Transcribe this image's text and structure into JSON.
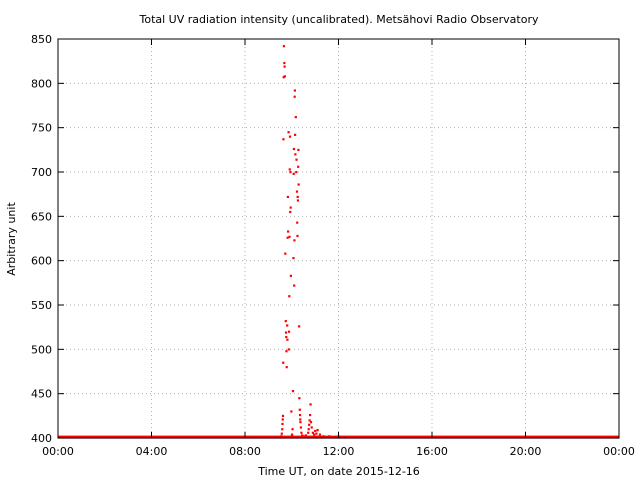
{
  "chart_data": {
    "type": "scatter",
    "title": "Total UV radiation intensity (uncalibrated). Metsähovi Radio Observatory",
    "xlabel": "Time UT, on date 2015-12-16",
    "ylabel": "Arbitrary unit",
    "x_unit": "hours UT",
    "xlim": [
      0,
      24
    ],
    "ylim": [
      400,
      850
    ],
    "x_ticks": [
      0,
      4,
      8,
      12,
      16,
      20,
      24
    ],
    "x_tick_labels": [
      "00:00",
      "04:00",
      "08:00",
      "12:00",
      "16:00",
      "20:00",
      "00:00"
    ],
    "y_ticks": [
      400,
      450,
      500,
      550,
      600,
      650,
      700,
      750,
      800,
      850
    ],
    "y_tick_labels": [
      "400",
      "450",
      "500",
      "550",
      "600",
      "650",
      "700",
      "750",
      "800",
      "850"
    ],
    "grid": true,
    "marker_color": "#ff0000",
    "series": [
      {
        "baseline": {
          "value": 401,
          "x_range": [
            0,
            24
          ]
        },
        "points": [
          [
            9.55,
            402
          ],
          [
            9.57,
            405
          ],
          [
            9.59,
            410
          ],
          [
            9.6,
            416
          ],
          [
            9.61,
            421
          ],
          [
            9.62,
            425
          ],
          [
            9.63,
            485
          ],
          [
            9.64,
            737
          ],
          [
            9.65,
            807
          ],
          [
            9.66,
            842
          ],
          [
            9.68,
            823
          ],
          [
            9.69,
            819
          ],
          [
            9.7,
            808
          ],
          [
            9.72,
            608
          ],
          [
            9.74,
            532
          ],
          [
            9.75,
            519
          ],
          [
            9.76,
            514
          ],
          [
            9.77,
            498
          ],
          [
            9.78,
            480
          ],
          [
            9.8,
            527
          ],
          [
            9.81,
            511
          ],
          [
            9.82,
            626
          ],
          [
            9.83,
            672
          ],
          [
            9.84,
            633
          ],
          [
            9.86,
            745
          ],
          [
            9.87,
            500
          ],
          [
            9.88,
            520
          ],
          [
            9.89,
            560
          ],
          [
            9.9,
            627
          ],
          [
            9.91,
            703
          ],
          [
            9.92,
            740
          ],
          [
            9.93,
            655
          ],
          [
            9.94,
            700
          ],
          [
            9.95,
            660
          ],
          [
            9.96,
            583
          ],
          [
            9.98,
            430
          ],
          [
            9.99,
            402
          ],
          [
            10.01,
            404
          ],
          [
            10.03,
            410
          ],
          [
            10.05,
            453
          ],
          [
            10.07,
            603
          ],
          [
            10.08,
            698
          ],
          [
            10.09,
            726
          ],
          [
            10.1,
            572
          ],
          [
            10.11,
            623
          ],
          [
            10.12,
            785
          ],
          [
            10.13,
            792
          ],
          [
            10.14,
            742
          ],
          [
            10.15,
            720
          ],
          [
            10.17,
            762
          ],
          [
            10.19,
            700
          ],
          [
            10.2,
            714
          ],
          [
            10.22,
            678
          ],
          [
            10.23,
            643
          ],
          [
            10.24,
            628
          ],
          [
            10.25,
            672
          ],
          [
            10.26,
            668
          ],
          [
            10.27,
            706
          ],
          [
            10.28,
            725
          ],
          [
            10.29,
            686
          ],
          [
            10.31,
            526
          ],
          [
            10.32,
            445
          ],
          [
            10.34,
            432
          ],
          [
            10.35,
            426
          ],
          [
            10.36,
            421
          ],
          [
            10.37,
            418
          ],
          [
            10.39,
            412
          ],
          [
            10.41,
            406
          ],
          [
            10.44,
            403
          ],
          [
            10.5,
            402
          ],
          [
            10.6,
            403
          ],
          [
            10.7,
            406
          ],
          [
            10.72,
            410
          ],
          [
            10.74,
            415
          ],
          [
            10.76,
            420
          ],
          [
            10.78,
            426
          ],
          [
            10.8,
            438
          ],
          [
            10.82,
            418
          ],
          [
            10.85,
            412
          ],
          [
            10.9,
            406
          ],
          [
            10.95,
            404
          ],
          [
            11.0,
            408
          ],
          [
            11.05,
            405
          ],
          [
            11.1,
            409
          ],
          [
            11.2,
            404
          ],
          [
            11.35,
            402
          ],
          [
            11.6,
            402
          ],
          [
            12.0,
            402
          ]
        ]
      }
    ]
  }
}
